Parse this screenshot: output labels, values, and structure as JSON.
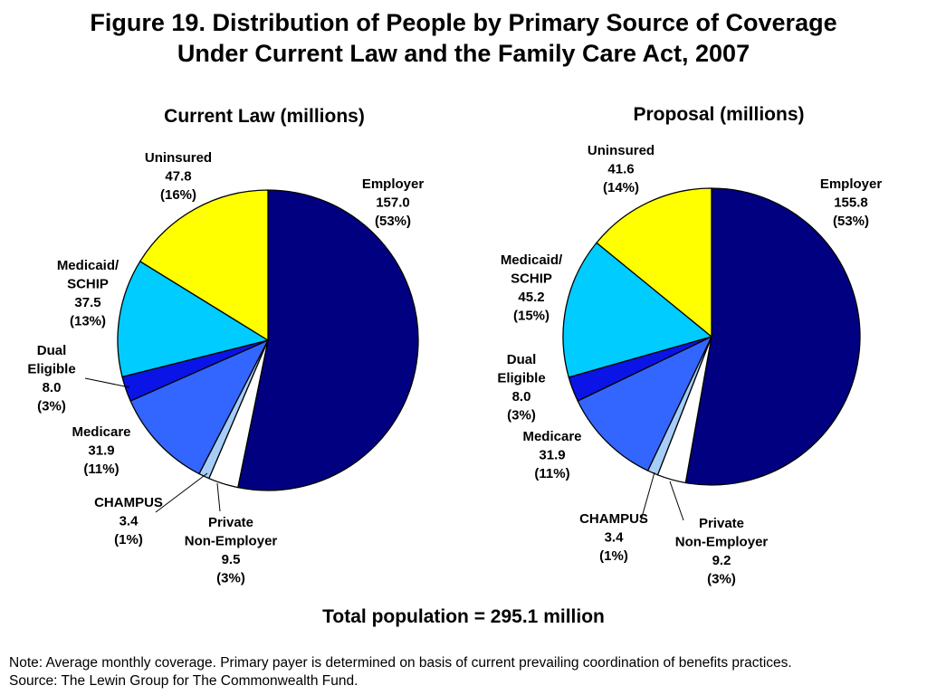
{
  "title": {
    "line1": "Figure 19. Distribution of People by Primary Source of Coverage",
    "line2": "Under Current Law and the Family Care Act, 2007"
  },
  "colors": {
    "Employer": "#000080",
    "Private Non-Employer": "#ffffff",
    "CHAMPUS": "#a6cdf7",
    "Medicare": "#3366ff",
    "Dual Eligible": "#0a14e6",
    "Medicaid/SCHIP": "#00ccff",
    "Uninsured": "#ffff00"
  },
  "chart_data": [
    {
      "type": "pie",
      "title": "Current Law (millions)",
      "slices": [
        {
          "name": "Employer",
          "value": 157.0,
          "pct": "(53%)",
          "label_lines": [
            "Employer",
            "157.0",
            "(53%)"
          ]
        },
        {
          "name": "Private Non-Employer",
          "value": 9.5,
          "pct": "(3%)",
          "label_lines": [
            "Private",
            "Non-Employer",
            "9.5",
            "(3%)"
          ]
        },
        {
          "name": "CHAMPUS",
          "value": 3.4,
          "pct": "(1%)",
          "label_lines": [
            "CHAMPUS",
            "3.4",
            "(1%)"
          ]
        },
        {
          "name": "Medicare",
          "value": 31.9,
          "pct": "(11%)",
          "label_lines": [
            "Medicare",
            "31.9",
            "(11%)"
          ]
        },
        {
          "name": "Dual Eligible",
          "value": 8.0,
          "pct": "(3%)",
          "label_lines": [
            "Dual",
            "Eligible",
            "8.0",
            "(3%)"
          ]
        },
        {
          "name": "Medicaid/SCHIP",
          "value": 37.5,
          "pct": "(13%)",
          "label_lines": [
            "Medicaid/",
            "SCHIP",
            "37.5",
            "(13%)"
          ]
        },
        {
          "name": "Uninsured",
          "value": 47.8,
          "pct": "(16%)",
          "label_lines": [
            "Uninsured",
            "47.8",
            "(16%)"
          ]
        }
      ]
    },
    {
      "type": "pie",
      "title": "Proposal (millions)",
      "slices": [
        {
          "name": "Employer",
          "value": 155.8,
          "pct": "(53%)",
          "label_lines": [
            "Employer",
            "155.8",
            "(53%)"
          ]
        },
        {
          "name": "Private Non-Employer",
          "value": 9.2,
          "pct": "(3%)",
          "label_lines": [
            "Private",
            "Non-Employer",
            "9.2",
            "(3%)"
          ]
        },
        {
          "name": "CHAMPUS",
          "value": 3.4,
          "pct": "(1%)",
          "label_lines": [
            "CHAMPUS",
            "3.4",
            "(1%)"
          ]
        },
        {
          "name": "Medicare",
          "value": 31.9,
          "pct": "(11%)",
          "label_lines": [
            "Medicare",
            "31.9",
            "(11%)"
          ]
        },
        {
          "name": "Dual Eligible",
          "value": 8.0,
          "pct": "(3%)",
          "label_lines": [
            "Dual",
            "Eligible",
            "8.0",
            "(3%)"
          ]
        },
        {
          "name": "Medicaid/SCHIP",
          "value": 45.2,
          "pct": "(15%)",
          "label_lines": [
            "Medicaid/",
            "SCHIP",
            "45.2",
            "(15%)"
          ]
        },
        {
          "name": "Uninsured",
          "value": 41.6,
          "pct": "(14%)",
          "label_lines": [
            "Uninsured",
            "41.6",
            "(14%)"
          ]
        }
      ]
    }
  ],
  "total": "Total population = 295.1 million",
  "notes": {
    "note": "Note: Average monthly coverage. Primary payer is determined on basis of current prevailing coordination of benefits practices.",
    "source": "Source: The Lewin Group for The Commonwealth Fund."
  }
}
